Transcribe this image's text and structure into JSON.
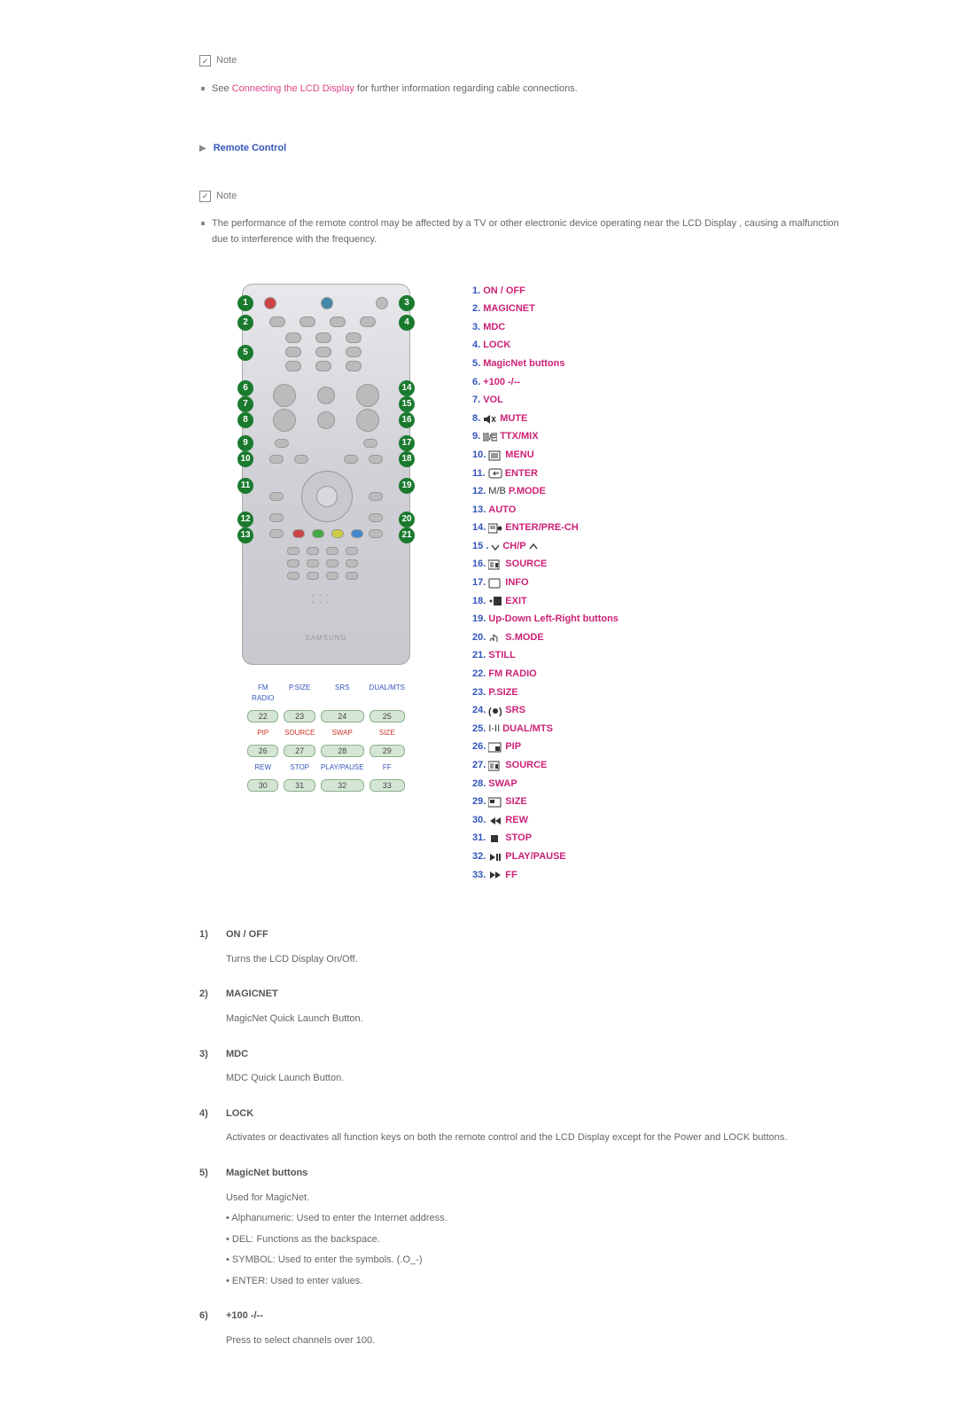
{
  "note_label": "Note",
  "see_text_pre": "See ",
  "see_link": "Connecting the LCD Display",
  "see_text_post": " for further information regarding cable connections.",
  "section_title": "Remote Control",
  "interference_text": "The performance of the remote control may be affected by a TV or other electronic device operating near the LCD Display , causing a malfunction due to interference with the frequency.",
  "brand_text": "SAMSUNG",
  "labels_row1": [
    "FM RADIO",
    "P.SIZE",
    "SRS",
    "DUAL/MTS"
  ],
  "labels_nums1": [
    "22",
    "23",
    "24",
    "25"
  ],
  "labels_row2": [
    "PIP",
    "SOURCE",
    "SWAP",
    "SIZE"
  ],
  "labels_nums2": [
    "26",
    "27",
    "28",
    "29"
  ],
  "labels_row3": [
    "REW",
    "STOP",
    "PLAY/PAUSE",
    "FF"
  ],
  "labels_nums3": [
    "30",
    "31",
    "32",
    "33"
  ],
  "functions": [
    {
      "n": "1.",
      "t": "ON / OFF"
    },
    {
      "n": "2.",
      "t": "MAGICNET"
    },
    {
      "n": "3.",
      "t": "MDC"
    },
    {
      "n": "4.",
      "t": "LOCK"
    },
    {
      "n": "5.",
      "t": "MagicNet buttons"
    },
    {
      "n": "6.",
      "t": "+100 -/--"
    },
    {
      "n": "7.",
      "t": "VOL"
    },
    {
      "n": "8.",
      "t": "MUTE",
      "icon": "mute"
    },
    {
      "n": "9.",
      "t": "TTX/MIX",
      "icon": "ttx"
    },
    {
      "n": "10.",
      "t": "MENU",
      "icon": "menu"
    },
    {
      "n": "11.",
      "t": "ENTER",
      "icon": "enter"
    },
    {
      "n": "12.",
      "t": "P.MODE",
      "icon_text": "M/B"
    },
    {
      "n": "13.",
      "t": "AUTO"
    },
    {
      "n": "14.",
      "t": "ENTER/PRE-CH",
      "icon": "prech"
    },
    {
      "n": "15 .",
      "t": "CH/P",
      "icon": "chp"
    },
    {
      "n": "16.",
      "t": "SOURCE",
      "icon": "src"
    },
    {
      "n": "17.",
      "t": "INFO",
      "icon": "info"
    },
    {
      "n": "18.",
      "t": "EXIT",
      "icon": "exit"
    },
    {
      "n": "19.",
      "t": "Up-Down Left-Right buttons"
    },
    {
      "n": "20.",
      "t": "S.MODE",
      "icon": "smode"
    },
    {
      "n": "21.",
      "t": "STILL"
    },
    {
      "n": "22.",
      "t": "FM RADIO"
    },
    {
      "n": "23.",
      "t": "P.SIZE"
    },
    {
      "n": "24.",
      "t": "SRS",
      "icon": "srs"
    },
    {
      "n": "25.",
      "t": "DUAL/MTS",
      "icon_text": "I-II"
    },
    {
      "n": "26.",
      "t": "PIP",
      "icon": "pip"
    },
    {
      "n": "27.",
      "t": "SOURCE",
      "icon": "src"
    },
    {
      "n": "28.",
      "t": "SWAP"
    },
    {
      "n": "29.",
      "t": "SIZE",
      "icon": "size"
    },
    {
      "n": "30.",
      "t": "REW",
      "icon": "rew"
    },
    {
      "n": "31.",
      "t": "STOP",
      "icon": "stop"
    },
    {
      "n": "32.",
      "t": "PLAY/PAUSE",
      "icon": "play"
    },
    {
      "n": "33.",
      "t": "FF",
      "icon": "ff"
    }
  ],
  "descriptions": [
    {
      "n": "1)",
      "h": "ON / OFF",
      "b": [
        "Turns the LCD Display On/Off."
      ]
    },
    {
      "n": "2)",
      "h": "MAGICNET",
      "b": [
        "MagicNet Quick Launch Button."
      ]
    },
    {
      "n": "3)",
      "h": "MDC",
      "b": [
        "MDC Quick Launch Button."
      ]
    },
    {
      "n": "4)",
      "h": "LOCK",
      "b": [
        "Activates or deactivates all function keys on both the remote control and the LCD Display except for the Power and LOCK buttons."
      ]
    },
    {
      "n": "5)",
      "h": "MagicNet buttons",
      "b": [
        "Used for MagicNet.",
        "• Alphanumeric: Used to enter the Internet address.",
        "• DEL: Functions as the backspace.",
        "• SYMBOL: Used to enter the symbols. (.O_-)",
        "• ENTER: Used to enter values."
      ]
    },
    {
      "n": "6)",
      "h": "+100 -/--",
      "b": [
        "Press to select channels over 100."
      ]
    }
  ],
  "colors": {
    "link": "#dd4488",
    "heading": "#3355bb",
    "magenta": "#cc2277",
    "body": "#666666",
    "badge": "#1a7a2e"
  }
}
